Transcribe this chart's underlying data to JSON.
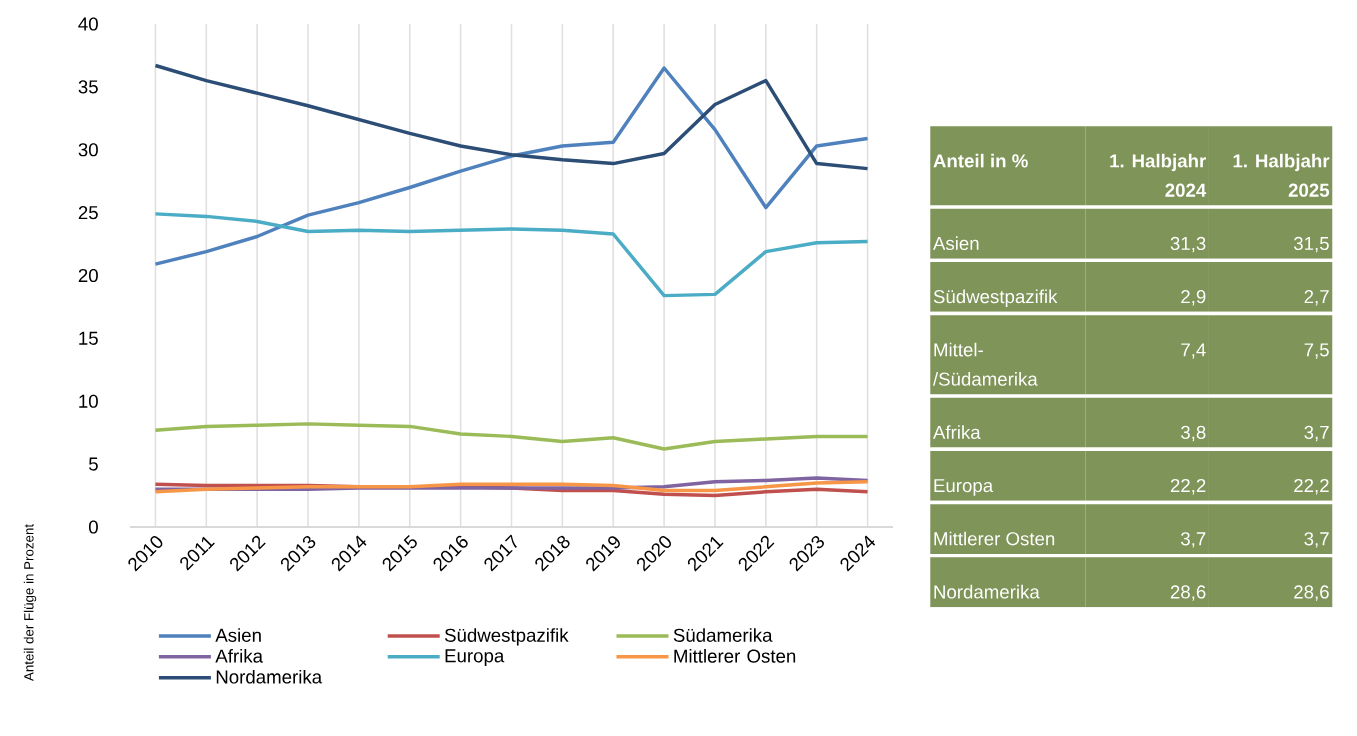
{
  "chart_data": [
    {
      "type": "line",
      "ylabel": "Anteil der Flüge in Prozent",
      "categories": [
        "2010",
        "2011",
        "2012",
        "2013",
        "2014",
        "2015",
        "2016",
        "2017",
        "2018",
        "2019",
        "2020",
        "2021",
        "2022",
        "2023",
        "2024"
      ],
      "ylim": [
        0,
        40
      ],
      "yticks": [
        0,
        5,
        10,
        15,
        20,
        25,
        30,
        35,
        40
      ],
      "grid": "x",
      "legend": "bottom",
      "marker": "none",
      "line_style": "solid",
      "series": [
        {
          "name": "Asien",
          "color": "#4f81bd",
          "values": [
            20.9,
            21.9,
            23.1,
            24.8,
            25.8,
            27.0,
            28.3,
            29.5,
            30.3,
            30.6,
            36.5,
            31.6,
            25.4,
            30.3,
            30.9
          ]
        },
        {
          "name": "Südwestpazifik",
          "color": "#c0504d",
          "values": [
            3.4,
            3.3,
            3.3,
            3.3,
            3.2,
            3.2,
            3.2,
            3.1,
            2.9,
            2.9,
            2.6,
            2.5,
            2.8,
            3.0,
            2.8
          ]
        },
        {
          "name": "Südamerika",
          "color": "#9bbb59",
          "values": [
            7.7,
            8.0,
            8.1,
            8.2,
            8.1,
            8.0,
            7.4,
            7.2,
            6.8,
            7.1,
            6.2,
            6.8,
            7.0,
            7.2,
            7.2
          ]
        },
        {
          "name": "Afrika",
          "color": "#8064a2",
          "values": [
            3.0,
            3.0,
            3.0,
            3.0,
            3.1,
            3.1,
            3.1,
            3.1,
            3.1,
            3.1,
            3.2,
            3.6,
            3.7,
            3.9,
            3.7
          ]
        },
        {
          "name": "Europa",
          "color": "#4bacc6",
          "values": [
            24.9,
            24.7,
            24.3,
            23.5,
            23.6,
            23.5,
            23.6,
            23.7,
            23.6,
            23.3,
            18.4,
            18.5,
            21.9,
            22.6,
            22.7
          ]
        },
        {
          "name": "Mittlerer Osten",
          "color": "#f79646",
          "values": [
            2.8,
            3.0,
            3.1,
            3.2,
            3.2,
            3.2,
            3.4,
            3.4,
            3.4,
            3.3,
            2.9,
            2.9,
            3.2,
            3.5,
            3.6
          ]
        },
        {
          "name": "Nordamerika",
          "color": "#2c4d75",
          "values": [
            36.7,
            35.5,
            34.5,
            33.5,
            32.4,
            31.3,
            30.3,
            29.6,
            29.2,
            28.9,
            29.7,
            33.6,
            35.5,
            28.9,
            28.5
          ]
        }
      ]
    },
    {
      "type": "other",
      "title": "Anteil in %",
      "color": "#7f9459",
      "categories": [
        "1. Halbjahr 2024",
        "1. Halbjahr 2025"
      ],
      "y_categories": [
        "Asien",
        "Südwestpazifik",
        "Mittel-/Südamerika",
        "Afrika",
        "Europa",
        "Mittlerer Osten",
        "Nordamerika"
      ],
      "cell_labels": [
        [
          "31,3",
          "31,5"
        ],
        [
          "2,9",
          "2,7"
        ],
        [
          "7,4",
          "7,5"
        ],
        [
          "3,8",
          "3,7"
        ],
        [
          "22,2",
          "22,2"
        ],
        [
          "3,7",
          "3,7"
        ],
        [
          "28,6",
          "28,6"
        ]
      ]
    }
  ]
}
